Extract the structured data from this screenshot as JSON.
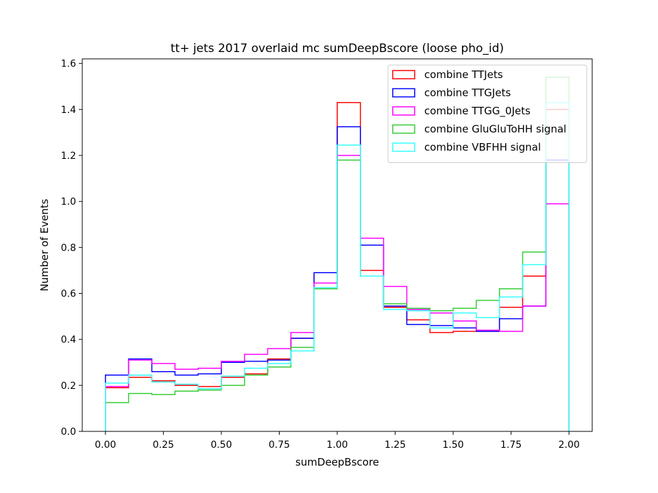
{
  "chart_data": {
    "type": "histogram-step",
    "title": "tt+ jets 2017 overlaid mc sumDeepBscore (loose pho_id)",
    "xlabel": "sumDeepBscore",
    "ylabel": "Number of Events",
    "xlim": [
      -0.1,
      2.1
    ],
    "ylim": [
      0,
      1.62
    ],
    "xticks": [
      0.0,
      0.25,
      0.5,
      0.75,
      1.0,
      1.25,
      1.5,
      1.75,
      2.0
    ],
    "xtick_labels": [
      "0.00",
      "0.25",
      "0.50",
      "0.75",
      "1.00",
      "1.25",
      "1.50",
      "1.75",
      "2.00"
    ],
    "yticks": [
      0.0,
      0.2,
      0.4,
      0.6,
      0.8,
      1.0,
      1.2,
      1.4,
      1.6
    ],
    "ytick_labels": [
      "0.0",
      "0.2",
      "0.4",
      "0.6",
      "0.8",
      "1.0",
      "1.2",
      "1.4",
      "1.6"
    ],
    "bin_edges": [
      0.0,
      0.1,
      0.2,
      0.3,
      0.4,
      0.5,
      0.6,
      0.7,
      0.8,
      0.9,
      1.0,
      1.1,
      1.2,
      1.3,
      1.4,
      1.5,
      1.6,
      1.7,
      1.8,
      1.9,
      2.0
    ],
    "legend_position": "upper right",
    "grid": false,
    "series": [
      {
        "name": "combine TTJets",
        "color": "#ff0000",
        "values": [
          0.19,
          0.235,
          0.22,
          0.2,
          0.195,
          0.235,
          0.25,
          0.315,
          0.405,
          0.69,
          1.43,
          0.7,
          0.54,
          0.485,
          0.43,
          0.435,
          0.435,
          0.54,
          0.675,
          1.4
        ]
      },
      {
        "name": "combine TTGJets",
        "color": "#0000ff",
        "values": [
          0.245,
          0.315,
          0.26,
          0.245,
          0.25,
          0.3,
          0.305,
          0.31,
          0.405,
          0.69,
          1.325,
          0.81,
          0.545,
          0.465,
          0.46,
          0.45,
          0.435,
          0.49,
          0.545,
          1.18
        ]
      },
      {
        "name": "combine TTGG_0Jets",
        "color": "#ff00ff",
        "values": [
          0.195,
          0.31,
          0.295,
          0.27,
          0.275,
          0.305,
          0.335,
          0.36,
          0.43,
          0.645,
          1.2,
          0.84,
          0.63,
          0.53,
          0.515,
          0.48,
          0.44,
          0.435,
          0.545,
          0.99
        ]
      },
      {
        "name": "combine GluGluToHH signal",
        "color": "#33cc33",
        "values": [
          0.125,
          0.165,
          0.16,
          0.175,
          0.18,
          0.2,
          0.245,
          0.28,
          0.365,
          0.62,
          1.18,
          0.675,
          0.555,
          0.535,
          0.525,
          0.535,
          0.57,
          0.62,
          0.78,
          1.54
        ]
      },
      {
        "name": "combine VBFHH signal",
        "color": "#33ffff",
        "values": [
          0.21,
          0.245,
          0.215,
          0.205,
          0.185,
          0.24,
          0.275,
          0.295,
          0.35,
          0.625,
          1.245,
          0.675,
          0.53,
          0.525,
          0.45,
          0.515,
          0.495,
          0.585,
          0.725,
          1.43
        ]
      }
    ]
  }
}
